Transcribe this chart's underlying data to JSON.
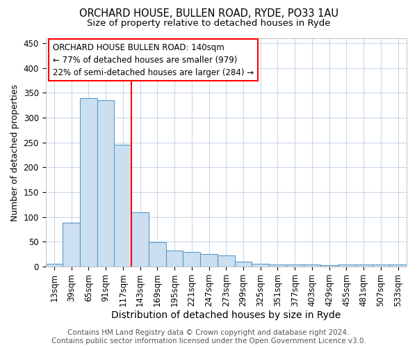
{
  "title1": "ORCHARD HOUSE, BULLEN ROAD, RYDE, PO33 1AU",
  "title2": "Size of property relative to detached houses in Ryde",
  "xlabel": "Distribution of detached houses by size in Ryde",
  "ylabel": "Number of detached properties",
  "categories": [
    "13sqm",
    "39sqm",
    "65sqm",
    "91sqm",
    "117sqm",
    "143sqm",
    "169sqm",
    "195sqm",
    "221sqm",
    "247sqm",
    "273sqm",
    "299sqm",
    "325sqm",
    "351sqm",
    "377sqm",
    "403sqm",
    "429sqm",
    "455sqm",
    "481sqm",
    "507sqm",
    "533sqm"
  ],
  "values": [
    6,
    89,
    340,
    335,
    245,
    110,
    49,
    32,
    30,
    25,
    22,
    10,
    6,
    5,
    4,
    4,
    3,
    4,
    4,
    4,
    4
  ],
  "bar_color": "#ccdff0",
  "bar_edge_color": "#5599cc",
  "bar_edge_width": 0.8,
  "red_line_x": 4.5,
  "ylim": [
    0,
    460
  ],
  "yticks": [
    0,
    50,
    100,
    150,
    200,
    250,
    300,
    350,
    400,
    450
  ],
  "annotation_line1": "ORCHARD HOUSE BULLEN ROAD: 140sqm",
  "annotation_line2": "← 77% of detached houses are smaller (979)",
  "annotation_line3": "22% of semi-detached houses are larger (284) →",
  "footer1": "Contains HM Land Registry data © Crown copyright and database right 2024.",
  "footer2": "Contains public sector information licensed under the Open Government Licence v3.0.",
  "bg_color": "#ffffff",
  "grid_color": "#c8d8e8",
  "title1_fontsize": 10.5,
  "title2_fontsize": 9.5,
  "xlabel_fontsize": 10,
  "ylabel_fontsize": 9,
  "tick_fontsize": 8.5,
  "footer_fontsize": 7.5,
  "ann_fontsize": 8.5
}
